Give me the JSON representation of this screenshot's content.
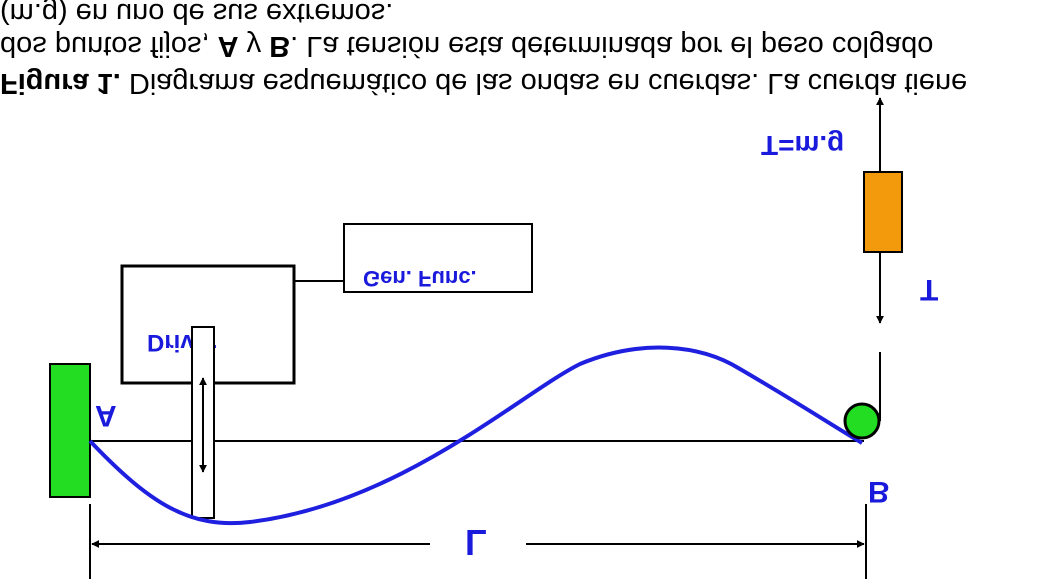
{
  "caption": {
    "prefix": "Figura 1.",
    "line1_rest": " Diagrama esquemático de las ondas en cuerdas. La cuerda tiene",
    "line2_a": "dos puntos fijos, ",
    "line2_A": "A",
    "line2_y": " y ",
    "line2_B": "B",
    "line2_rest": ". La tensión esta determinada por el peso colgado",
    "line3": "(m.g) en uno de sus extremos."
  },
  "labels": {
    "tension_formula": "T=m.g",
    "tension": "T",
    "point_a": "A",
    "point_b": "B",
    "length": "L",
    "driver": "Driver",
    "generator": "Gen. Func."
  },
  "colors": {
    "wall": "#22dd22",
    "pulley": "#22dd22",
    "mass": "#f29a0c",
    "string": "#1f1fe0",
    "label": "#1a1adc"
  }
}
